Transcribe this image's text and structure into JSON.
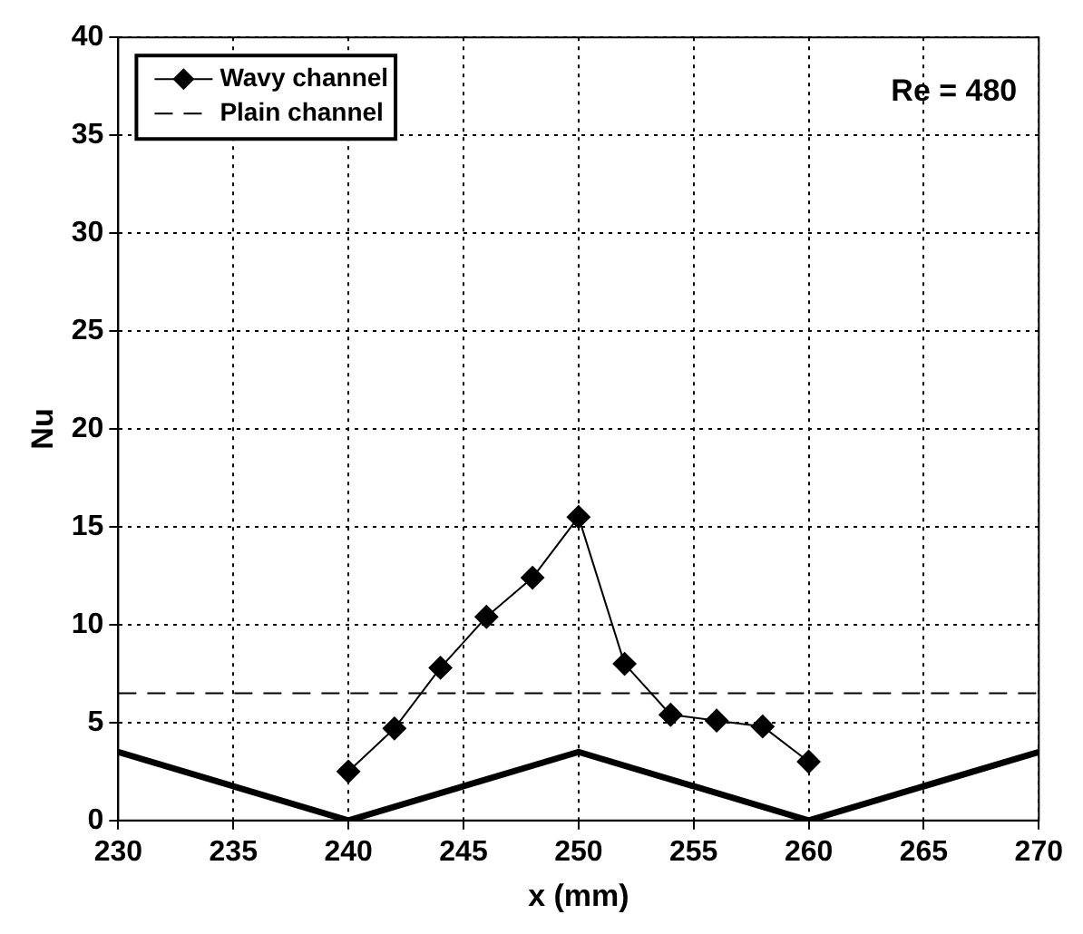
{
  "chart_data": {
    "type": "line",
    "xlabel": "x (mm)",
    "ylabel": "Nu",
    "xlim": [
      230,
      270
    ],
    "xticks": [
      230,
      235,
      240,
      245,
      250,
      255,
      260,
      265,
      270
    ],
    "ylim": [
      0,
      40
    ],
    "yticks": [
      0,
      5,
      10,
      15,
      20,
      25,
      30,
      35,
      40
    ],
    "grid": true,
    "legend": "top left",
    "annotations": [
      "Re = 480"
    ],
    "series": [
      {
        "name": "Wavy channel",
        "color": "#000000",
        "marker": "diamond",
        "line_style": "solid",
        "x": [
          240,
          242,
          244,
          246,
          248,
          250,
          252,
          254,
          256,
          258,
          260
        ],
        "values": [
          2.5,
          4.7,
          7.8,
          10.4,
          12.4,
          15.5,
          8.0,
          5.4,
          5.1,
          4.8,
          3.0
        ]
      },
      {
        "name": "Plain channel",
        "color": "#000000",
        "marker": "none",
        "line_style": "dashed",
        "x": [
          230,
          270
        ],
        "values": [
          6.5,
          6.5
        ]
      },
      {
        "color": "#000000",
        "marker": "none",
        "line_style": "solid",
        "x": [
          230,
          240,
          250,
          260,
          270
        ],
        "values": [
          3.5,
          0,
          3.5,
          0,
          3.5
        ]
      }
    ]
  }
}
